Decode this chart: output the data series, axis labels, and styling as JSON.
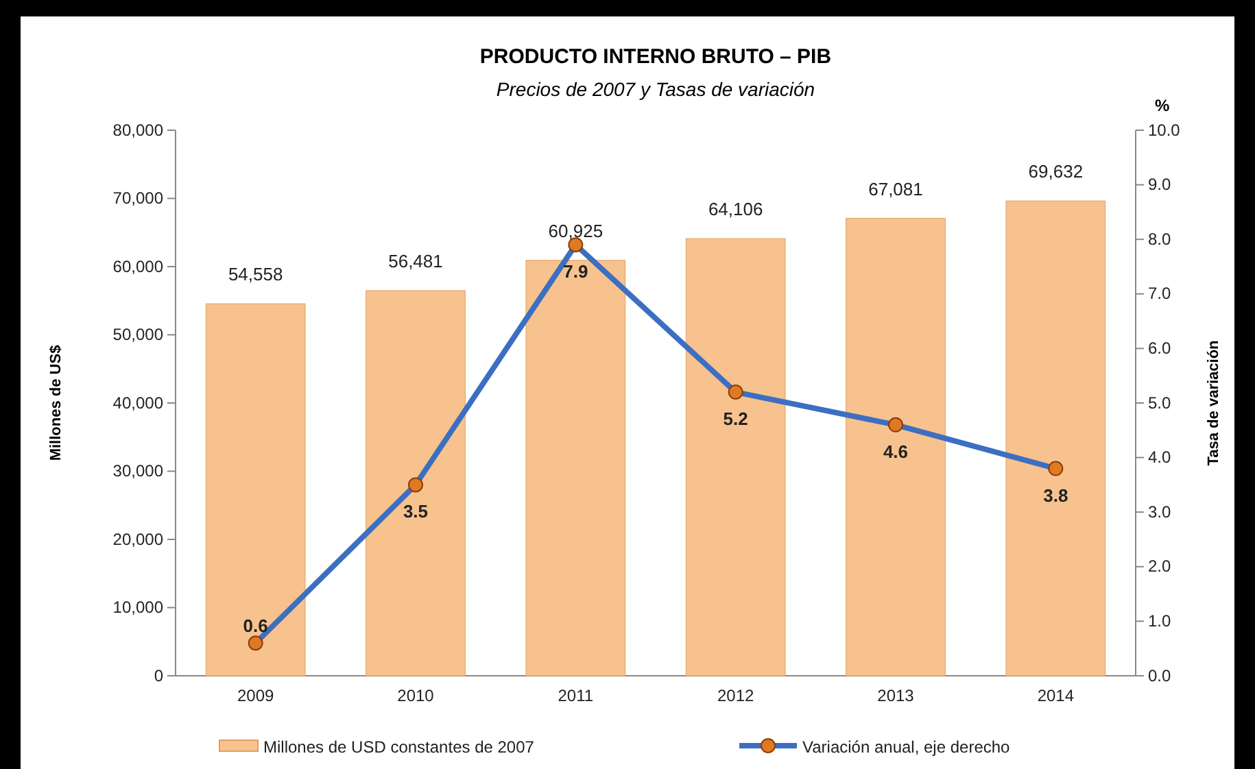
{
  "chart_data": {
    "type": "bar",
    "title": "PRODUCTO INTERNO BRUTO – PIB",
    "subtitle": "Precios de 2007 y Tasas de variación",
    "ylabel": "Millones de US$",
    "y2label": "Tasa de variación",
    "annotations": [
      "%"
    ],
    "categories": [
      "2009",
      "2010",
      "2011",
      "2012",
      "2013",
      "2014"
    ],
    "series": [
      {
        "name": "Millones de USD constantes de 2007",
        "color": "#f7c28e",
        "values": [
          54558,
          56481,
          60925,
          64106,
          67081,
          69632
        ],
        "value_labels": [
          "54,558",
          "56,481",
          "60,925",
          "64,106",
          "67,081",
          "69,632"
        ]
      },
      {
        "name": "Variación anual, eje derecho",
        "type": "line",
        "axis": "y2",
        "color": "#3c6fc2",
        "marker": "circle",
        "values": [
          0.6,
          3.5,
          7.9,
          5.2,
          4.6,
          3.8
        ],
        "value_labels": [
          "0.6",
          "3.5",
          "7.9",
          "5.2",
          "4.6",
          "3.8"
        ]
      }
    ],
    "ylim": [
      0,
      80000
    ],
    "yticks": [
      {
        "value": 0,
        "label": "0"
      },
      {
        "value": 10000,
        "label": "10,000"
      },
      {
        "value": 20000,
        "label": "20,000"
      },
      {
        "value": 30000,
        "label": "30,000"
      },
      {
        "value": 40000,
        "label": "40,000"
      },
      {
        "value": 50000,
        "label": "50,000"
      },
      {
        "value": 60000,
        "label": "60,000"
      },
      {
        "value": 70000,
        "label": "70,000"
      },
      {
        "value": 80000,
        "label": "80,000"
      }
    ],
    "y2lim": [
      0,
      10
    ],
    "y2ticks": [
      {
        "value": 0,
        "label": "0.0"
      },
      {
        "value": 1,
        "label": "1.0"
      },
      {
        "value": 2,
        "label": "2.0"
      },
      {
        "value": 3,
        "label": "3.0"
      },
      {
        "value": 4,
        "label": "4.0"
      },
      {
        "value": 5,
        "label": "5.0"
      },
      {
        "value": 6,
        "label": "6.0"
      },
      {
        "value": 7,
        "label": "7.0"
      },
      {
        "value": 8,
        "label": "8.0"
      },
      {
        "value": 9,
        "label": "9.0"
      },
      {
        "value": 10,
        "label": "10.0"
      }
    ],
    "legend": "bottom"
  }
}
